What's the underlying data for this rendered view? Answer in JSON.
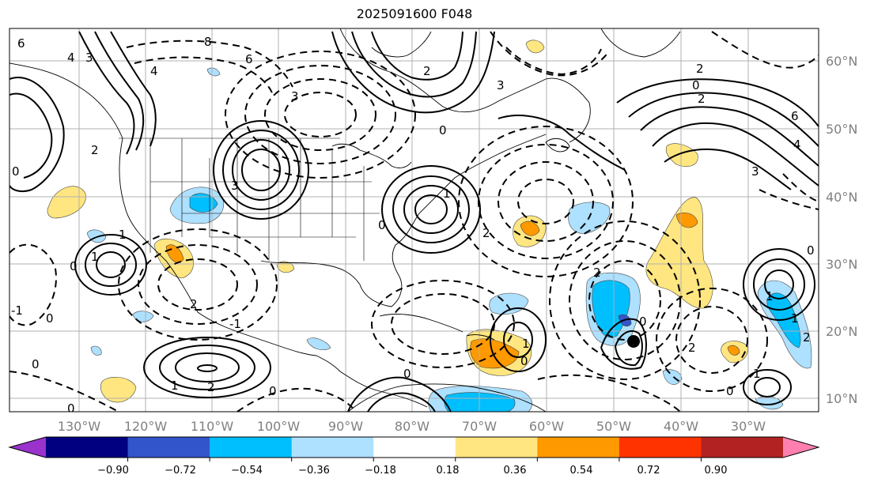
{
  "title": "2025091600 F048",
  "map": {
    "type": "weather-map",
    "lat_labels": [
      "60°N",
      "50°N",
      "40°N",
      "30°N",
      "20°N",
      "10°N"
    ],
    "lon_labels": [
      "130°W",
      "120°W",
      "110°W",
      "100°W",
      "90°W",
      "80°W",
      "70°W",
      "60°W",
      "50°W",
      "40°W",
      "30°W"
    ],
    "contour_labels": [
      "6",
      "8",
      "6",
      "4",
      "3",
      "4",
      "2",
      "3",
      "0",
      "3",
      "2",
      "0",
      "2",
      "6",
      "4",
      "3",
      "0",
      "2",
      "3",
      "1",
      "0",
      "2",
      "1",
      "1",
      "0",
      "-1",
      "0",
      "-1",
      "0",
      "0",
      "2",
      "1",
      "2",
      "0",
      "0",
      "0",
      "0",
      "1",
      "1",
      "2",
      "2",
      "1",
      "0",
      "2",
      "1",
      "0"
    ],
    "colorbar": {
      "ticks": [
        "−0.90",
        "−0.72",
        "−0.54",
        "−0.36",
        "−0.18",
        "0.18",
        "0.36",
        "0.54",
        "0.72",
        "0.90"
      ],
      "colors": [
        "#9933cc",
        "#000080",
        "#3355cc",
        "#00bfff",
        "#aee0ff",
        "#ffffff",
        "#ffe680",
        "#ff9900",
        "#ff3300",
        "#b22222",
        "#ff80b0"
      ]
    },
    "colors": {
      "coast": "#000000",
      "grid": "#aaaaaa",
      "positive_contour": "#000000"
    }
  }
}
